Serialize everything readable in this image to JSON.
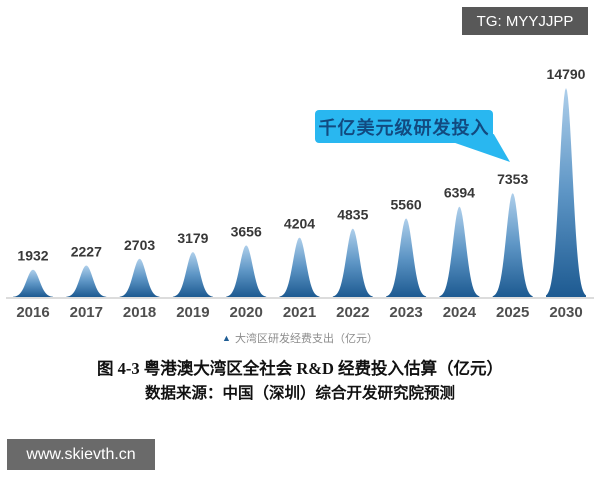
{
  "badges": {
    "top_right": "TG: MYYJJPP",
    "bottom_left": "www.skievth.cn"
  },
  "callout": {
    "text": "千亿美元级研发投入"
  },
  "chart_data": {
    "type": "bar",
    "style": "gaussian-peak",
    "categories": [
      "2016",
      "2017",
      "2018",
      "2019",
      "2020",
      "2021",
      "2022",
      "2023",
      "2024",
      "2025",
      "2030"
    ],
    "values": [
      1932,
      2227,
      2703,
      3179,
      3656,
      4204,
      4835,
      5560,
      6394,
      7353,
      14790
    ],
    "series_name": "大湾区研发经费支出（亿元）",
    "title": "图 4-3 粤港澳大湾区全社会 R&D 经费投入估算（亿元）",
    "annotation": "千亿美元级研发投入",
    "ylim": [
      0,
      15500
    ],
    "grid": false,
    "legend_position": "bottom",
    "colors": {
      "peak_top": "#aecfeb",
      "peak_mid": "#5d95c5",
      "peak_bottom": "#1d5a91",
      "baseline": "#dcdcdc",
      "value_label": "#383838",
      "year_label": "#4f4f4f",
      "callout_bg": "#29b7f0",
      "callout_text": "#124a80"
    }
  },
  "legend": {
    "marker": "▲",
    "label": "大湾区研发经费支出（亿元）"
  },
  "caption": {
    "line1": "图 4-3 粤港澳大湾区全社会 R&D 经费投入估算（亿元）",
    "line2": "数据来源：中国（深圳）综合开发研究院预测"
  }
}
